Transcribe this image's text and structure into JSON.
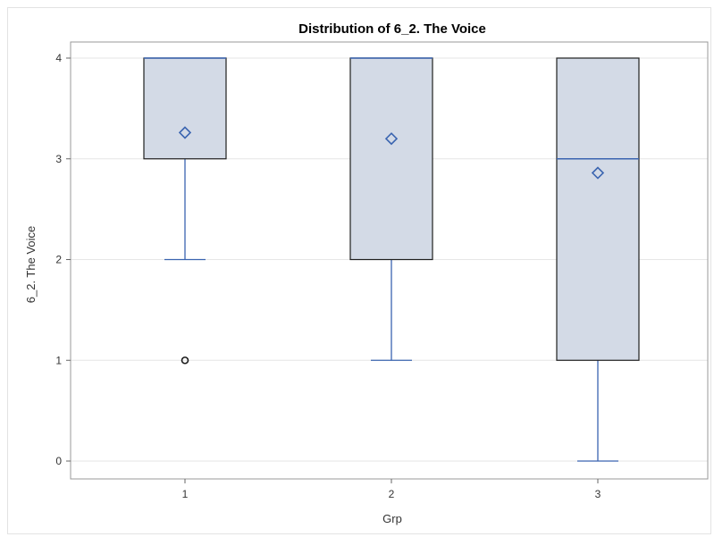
{
  "chart_data": {
    "type": "box",
    "title": "Distribution of 6_2. The Voice",
    "xlabel": "Grp",
    "ylabel": "6_2. The Voice",
    "ylim": [
      0,
      4
    ],
    "yticks": [
      0,
      1,
      2,
      3,
      4
    ],
    "grid": "horizontal",
    "categories": [
      "1",
      "2",
      "3"
    ],
    "boxes": [
      {
        "category": "1",
        "whisker_low": 2,
        "q1": 3,
        "median": 4,
        "q3": 4,
        "whisker_high": 4,
        "mean": 3.26,
        "outliers": [
          1
        ]
      },
      {
        "category": "2",
        "whisker_low": 1,
        "q1": 2,
        "median": 4,
        "q3": 4,
        "whisker_high": 4,
        "mean": 3.2,
        "outliers": []
      },
      {
        "category": "3",
        "whisker_low": 0,
        "q1": 1,
        "median": 3,
        "q3": 4,
        "whisker_high": 4,
        "mean": 2.86,
        "outliers": []
      }
    ],
    "colors": {
      "box_fill": "#d3dae6",
      "box_outline": "#1f1f1f",
      "whisker": "#3a64b0",
      "median": "#3a64b0",
      "mean_marker": "#3a64b0",
      "outlier": "#1a1a1a",
      "grid": "#e6e6e6"
    },
    "mean_marker_shape": "diamond",
    "outlier_marker_shape": "circle"
  }
}
